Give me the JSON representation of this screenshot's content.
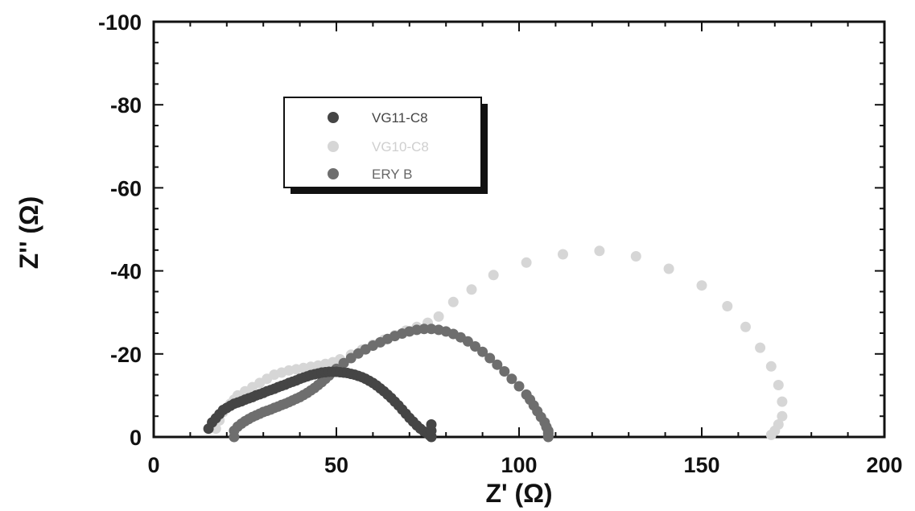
{
  "chart_data": {
    "type": "scatter",
    "xlabel": "Z' (Ω)",
    "ylabel": "Z'' (Ω)",
    "xlim": [
      0,
      200
    ],
    "ylim": [
      0,
      -100
    ],
    "xticks": [
      0,
      50,
      100,
      150,
      200
    ],
    "yticks": [
      0,
      -20,
      -40,
      -60,
      -80,
      -100
    ],
    "grid": false,
    "legend": "upper-left",
    "series": [
      {
        "name": "VG11-C8",
        "color": "#454545",
        "x": [
          15,
          16,
          17,
          18,
          19,
          20,
          21,
          22,
          23,
          24,
          25,
          26,
          27,
          28,
          29,
          30,
          31,
          32,
          33,
          34,
          35,
          36,
          37,
          38,
          39,
          40,
          41,
          42,
          43,
          44,
          45,
          46,
          47,
          48,
          49,
          50,
          51,
          52,
          53,
          54,
          55,
          56,
          57,
          58,
          59,
          60,
          61,
          62,
          63,
          64,
          65,
          66,
          67,
          68,
          69,
          70,
          71,
          72,
          73,
          74,
          75,
          75.5,
          76,
          76,
          76,
          76
        ],
        "y": [
          -2,
          -3.5,
          -4.5,
          -5.5,
          -6.5,
          -7,
          -7.5,
          -8,
          -8.3,
          -8.6,
          -9,
          -9.3,
          -9.6,
          -10,
          -10.3,
          -10.6,
          -11,
          -11.3,
          -11.6,
          -12,
          -12.3,
          -12.6,
          -13,
          -13.3,
          -13.6,
          -14,
          -14.3,
          -14.6,
          -14.9,
          -15.1,
          -15.3,
          -15.5,
          -15.6,
          -15.7,
          -15.7,
          -15.7,
          -15.6,
          -15.5,
          -15.4,
          -15.2,
          -15,
          -14.7,
          -14.4,
          -14,
          -13.5,
          -13,
          -12.4,
          -11.7,
          -11,
          -10.2,
          -9.4,
          -8.5,
          -7.6,
          -6.6,
          -5.6,
          -4.6,
          -3.7,
          -2.8,
          -2,
          -1.3,
          -0.8,
          -0.4,
          -0.1,
          0,
          -1.5,
          -3
        ]
      },
      {
        "name": "VG10-C8",
        "color": "#d6d6d6",
        "x": [
          17,
          18,
          19,
          20,
          21,
          22,
          23,
          25,
          27,
          29,
          31,
          33,
          35,
          37,
          39,
          41,
          43,
          45,
          47,
          49,
          51,
          54,
          57,
          60,
          63,
          66,
          69,
          72,
          75,
          78,
          82,
          87,
          93,
          102,
          112,
          122,
          132,
          141,
          150,
          157,
          162,
          166,
          169,
          171,
          172,
          172,
          171,
          170,
          169
        ],
        "y": [
          -2,
          -4,
          -6,
          -7,
          -8,
          -9,
          -10,
          -11,
          -12,
          -13,
          -14,
          -15,
          -15.5,
          -16,
          -16.3,
          -16.6,
          -16.9,
          -17.2,
          -17.6,
          -18,
          -18.7,
          -19.8,
          -21,
          -22.2,
          -23.4,
          -24.5,
          -25.6,
          -26.5,
          -27.5,
          -29,
          -32.5,
          -35.5,
          -39,
          -42,
          -44,
          -44.8,
          -43.5,
          -40.5,
          -36.5,
          -31.5,
          -26.5,
          -21.5,
          -17,
          -12.5,
          -8.5,
          -5,
          -3,
          -1.5,
          -0.5
        ]
      },
      {
        "name": "ERY B",
        "color": "#6e6e6e",
        "x": [
          22,
          22,
          23,
          24,
          25,
          26,
          27,
          28,
          29,
          30,
          31,
          32,
          33,
          34,
          35,
          36,
          37,
          38,
          39,
          40,
          41,
          42,
          43,
          44,
          45,
          46,
          47,
          48,
          49,
          50,
          52,
          54,
          56,
          58,
          60,
          62,
          64,
          66,
          68,
          70,
          72,
          74,
          76,
          78,
          80,
          82,
          84,
          86,
          88,
          90,
          92,
          94,
          96,
          98,
          100,
          102,
          103,
          104,
          105,
          106,
          107,
          107.5,
          108,
          108,
          108,
          108,
          108
        ],
        "y": [
          0,
          -1.5,
          -2.5,
          -3.2,
          -3.8,
          -4.3,
          -4.8,
          -5.2,
          -5.6,
          -6,
          -6.3,
          -6.6,
          -7,
          -7.3,
          -7.7,
          -8,
          -8.4,
          -8.8,
          -9.2,
          -9.6,
          -10.1,
          -10.6,
          -11.2,
          -11.8,
          -12.5,
          -13.2,
          -14,
          -14.8,
          -15.6,
          -16.4,
          -17.8,
          -19,
          -20.1,
          -21.1,
          -22,
          -22.8,
          -23.6,
          -24.3,
          -24.9,
          -25.4,
          -25.8,
          -26,
          -26,
          -25.8,
          -25.4,
          -24.8,
          -24,
          -23,
          -21.8,
          -20.5,
          -19,
          -17.4,
          -15.8,
          -14,
          -12.2,
          -10.2,
          -9,
          -7.6,
          -6.2,
          -4.8,
          -3.5,
          -2.4,
          -1.5,
          -0.8,
          -0.3,
          0,
          -1
        ]
      }
    ]
  }
}
